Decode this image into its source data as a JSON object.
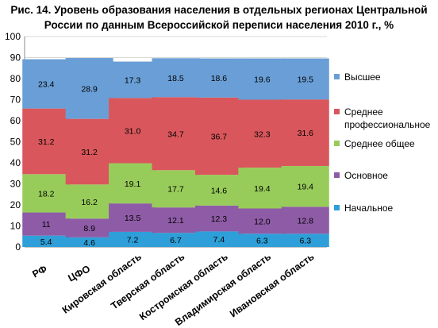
{
  "title": {
    "line1": "Рис. 14. Уровень образования населения в отдельных регионах Центральной",
    "line2": "России по данным Всероссийской переписи населения 2010 г., %"
  },
  "chart_data": {
    "type": "bar",
    "stacked": true,
    "categories": [
      "РФ",
      "ЦФО",
      "Кировская область",
      "Тверская область",
      "Костромская область",
      "Владимирская область",
      "Ивановская область"
    ],
    "series": [
      {
        "name": "Начальное",
        "color": "#2E9FD8",
        "values": [
          5.4,
          4.6,
          7.2,
          6.7,
          7.4,
          6.3,
          6.3
        ],
        "labels": [
          "5.4",
          "4.6",
          "7.2",
          "6.7",
          "7.4",
          "6.3",
          "6.3"
        ]
      },
      {
        "name": "Основное",
        "color": "#8E5BA6",
        "values": [
          11,
          8.9,
          13.5,
          12.1,
          12.3,
          12.0,
          12.8
        ],
        "labels": [
          "11",
          "8.9",
          "13.5",
          "12.1",
          "12.3",
          "12.0",
          "12.8"
        ]
      },
      {
        "name": "Среднее общее",
        "color": "#98CC5A",
        "values": [
          18.2,
          16.2,
          19.1,
          17.7,
          14.6,
          19.4,
          19.4
        ],
        "labels": [
          "18.2",
          "16.2",
          "19.1",
          "17.7",
          "14.6",
          "19.4",
          "19.4"
        ]
      },
      {
        "name": "Среднее профессиональное",
        "color": "#D9575C",
        "values": [
          31.2,
          31.2,
          31.0,
          34.7,
          36.7,
          32.3,
          31.6
        ],
        "labels": [
          "31.2",
          "31.2",
          "31.0",
          "34.7",
          "36.7",
          "32.3",
          "31.6"
        ]
      },
      {
        "name": "Высшее",
        "color": "#6A9ED6",
        "values": [
          23.4,
          28.9,
          17.3,
          18.5,
          18.6,
          19.6,
          19.5
        ],
        "labels": [
          "23.4",
          "28.9",
          "17.3",
          "18.5",
          "18.6",
          "19.6",
          "19.5"
        ]
      }
    ],
    "legend": {
      "position": "right",
      "order": [
        "Высшее",
        "Среднее профессиональное",
        "Среднее общее",
        "Основное",
        "Начальное"
      ],
      "lines": {
        "Высшее": [
          "Высшее"
        ],
        "Среднее профессиональное": [
          "Среднее",
          "профессиональное"
        ],
        "Среднее общее": [
          "Среднее общее"
        ],
        "Основное": [
          "Основное"
        ],
        "Начальное": [
          "Начальное"
        ]
      }
    },
    "ylim": [
      0,
      100
    ],
    "yticks": [
      "0",
      "10",
      "20",
      "30",
      "40",
      "50",
      "60",
      "70",
      "80",
      "90",
      "100"
    ],
    "grid": true,
    "xlabel": "",
    "ylabel": ""
  }
}
